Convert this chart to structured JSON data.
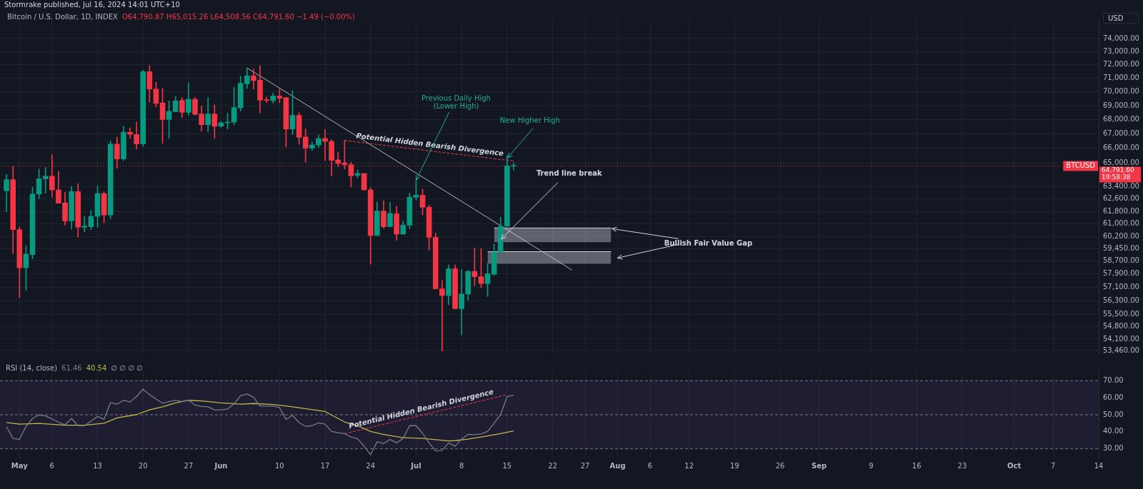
{
  "chart_data": [
    {
      "type": "candlestick",
      "title": "Bitcoin / U.S. Dollar, 1D, INDEX",
      "subtitle": "O64,790.87 H65,015.26 L64,508.56 C64,791.60 −1.49 (−0.00%)",
      "ylabel": "USD",
      "x": [
        "2024-04-29",
        "2024-04-30",
        "2024-05-01",
        "2024-05-02",
        "2024-05-03",
        "2024-05-04",
        "2024-05-05",
        "2024-05-06",
        "2024-05-07",
        "2024-05-08",
        "2024-05-09",
        "2024-05-10",
        "2024-05-11",
        "2024-05-12",
        "2024-05-13",
        "2024-05-14",
        "2024-05-15",
        "2024-05-16",
        "2024-05-17",
        "2024-05-18",
        "2024-05-19",
        "2024-05-20",
        "2024-05-21",
        "2024-05-22",
        "2024-05-23",
        "2024-05-24",
        "2024-05-25",
        "2024-05-26",
        "2024-05-27",
        "2024-05-28",
        "2024-05-29",
        "2024-05-30",
        "2024-05-31",
        "2024-06-01",
        "2024-06-02",
        "2024-06-03",
        "2024-06-04",
        "2024-06-05",
        "2024-06-06",
        "2024-06-07",
        "2024-06-08",
        "2024-06-09",
        "2024-06-10",
        "2024-06-11",
        "2024-06-12",
        "2024-06-13",
        "2024-06-14",
        "2024-06-15",
        "2024-06-16",
        "2024-06-17",
        "2024-06-18",
        "2024-06-19",
        "2024-06-20",
        "2024-06-21",
        "2024-06-22",
        "2024-06-23",
        "2024-06-24",
        "2024-06-25",
        "2024-06-26",
        "2024-06-27",
        "2024-06-28",
        "2024-06-29",
        "2024-06-30",
        "2024-07-01",
        "2024-07-02",
        "2024-07-03",
        "2024-07-04",
        "2024-07-05",
        "2024-07-06",
        "2024-07-07",
        "2024-07-08",
        "2024-07-09",
        "2024-07-10",
        "2024-07-11",
        "2024-07-12",
        "2024-07-13",
        "2024-07-14",
        "2024-07-15",
        "2024-07-16"
      ],
      "ohlc": [
        [
          63140,
          64230,
          61790,
          63880
        ],
        [
          63880,
          64760,
          59130,
          60640
        ],
        [
          60640,
          60820,
          56500,
          58270
        ],
        [
          58270,
          59640,
          56930,
          59110
        ],
        [
          59080,
          63390,
          58830,
          62930
        ],
        [
          62930,
          64580,
          62620,
          63940
        ],
        [
          63930,
          64700,
          62980,
          64110
        ],
        [
          64110,
          65570,
          62720,
          63200
        ],
        [
          63200,
          64430,
          62330,
          62330
        ],
        [
          62350,
          63050,
          60920,
          61190
        ],
        [
          61190,
          63440,
          60670,
          63090
        ],
        [
          63090,
          63610,
          60170,
          60790
        ],
        [
          60790,
          61480,
          60500,
          60860
        ],
        [
          60820,
          61860,
          60640,
          61480
        ],
        [
          61480,
          63470,
          60790,
          62960
        ],
        [
          62960,
          63080,
          61080,
          61570
        ],
        [
          61570,
          66510,
          61340,
          66290
        ],
        [
          66290,
          66780,
          64640,
          65270
        ],
        [
          65270,
          67540,
          65180,
          67110
        ],
        [
          67110,
          67430,
          66680,
          66970
        ],
        [
          66950,
          67820,
          65940,
          66300
        ],
        [
          66300,
          71600,
          66150,
          71490
        ],
        [
          71490,
          71960,
          69250,
          70200
        ],
        [
          70200,
          70710,
          68920,
          69160
        ],
        [
          69200,
          70240,
          66350,
          68010
        ],
        [
          68010,
          69340,
          66690,
          68590
        ],
        [
          68570,
          69650,
          68570,
          69340
        ],
        [
          69380,
          69580,
          68150,
          68520
        ],
        [
          68520,
          70690,
          68320,
          69460
        ],
        [
          69460,
          69590,
          68320,
          68380
        ],
        [
          68400,
          68970,
          67190,
          67640
        ],
        [
          67640,
          69590,
          67160,
          68400
        ],
        [
          68400,
          69060,
          66690,
          67530
        ],
        [
          67540,
          67890,
          67460,
          67780
        ],
        [
          67780,
          68450,
          67340,
          67830
        ],
        [
          67830,
          70340,
          67650,
          68870
        ],
        [
          68840,
          71150,
          68620,
          70630
        ],
        [
          70590,
          71770,
          70250,
          71180
        ],
        [
          71180,
          71680,
          70200,
          70830
        ],
        [
          70860,
          71950,
          68480,
          69390
        ],
        [
          69410,
          69630,
          69220,
          69380
        ],
        [
          69360,
          69910,
          69190,
          69690
        ],
        [
          69690,
          70200,
          69220,
          69540
        ],
        [
          69580,
          69580,
          66110,
          67340
        ],
        [
          67340,
          70080,
          66950,
          68310
        ],
        [
          68310,
          68500,
          66290,
          66760
        ],
        [
          66780,
          67340,
          65050,
          66010
        ],
        [
          66010,
          66430,
          65850,
          66230
        ],
        [
          66230,
          66920,
          66070,
          66680
        ],
        [
          66680,
          67300,
          65160,
          66480
        ],
        [
          66480,
          66600,
          64120,
          65180
        ],
        [
          65210,
          65740,
          64760,
          64960
        ],
        [
          65010,
          66540,
          64590,
          64890
        ],
        [
          64890,
          65050,
          63390,
          64130
        ],
        [
          64170,
          64530,
          64000,
          64290
        ],
        [
          64290,
          64290,
          63200,
          63200
        ],
        [
          63200,
          63350,
          58480,
          60270
        ],
        [
          60270,
          62410,
          60270,
          61820
        ],
        [
          61820,
          62500,
          60730,
          60820
        ],
        [
          60820,
          62380,
          60820,
          61670
        ],
        [
          61640,
          62140,
          59960,
          60350
        ],
        [
          60350,
          61180,
          60350,
          60920
        ],
        [
          60920,
          62980,
          60700,
          62720
        ],
        [
          62720,
          63790,
          62540,
          62860
        ],
        [
          62850,
          63240,
          61580,
          62070
        ],
        [
          62070,
          62200,
          59360,
          60150
        ],
        [
          60150,
          60410,
          57010,
          57010
        ],
        [
          57010,
          57510,
          53430,
          56610
        ],
        [
          56610,
          58450,
          56070,
          58210
        ],
        [
          58210,
          58450,
          55840,
          55840
        ],
        [
          55840,
          58170,
          54330,
          56700
        ],
        [
          56700,
          58120,
          56340,
          58050
        ],
        [
          58050,
          59500,
          57200,
          57740
        ],
        [
          57740,
          59450,
          57080,
          57320
        ],
        [
          57320,
          58550,
          56560,
          57910
        ],
        [
          57880,
          59730,
          57820,
          59230
        ],
        [
          59230,
          61420,
          59230,
          60850
        ],
        [
          60850,
          65500,
          60850,
          64810
        ],
        [
          64790.87,
          65015.26,
          64508.56,
          64791.6
        ]
      ],
      "colors": [
        "#089981",
        "#f23645",
        "#f23645",
        "#089981",
        "#089981",
        "#089981",
        "#089981",
        "#f23645",
        "#f23645",
        "#f23645",
        "#089981",
        "#f23645",
        "#089981",
        "#089981",
        "#089981",
        "#f23645",
        "#089981",
        "#f23645",
        "#089981",
        "#f23645",
        "#f23645",
        "#089981",
        "#f23645",
        "#f23645",
        "#f23645",
        "#089981",
        "#089981",
        "#f23645",
        "#089981",
        "#f23645",
        "#f23645",
        "#089981",
        "#f23645",
        "#089981",
        "#089981",
        "#089981",
        "#089981",
        "#089981",
        "#f23645",
        "#f23645",
        "#f23645",
        "#089981",
        "#f23645",
        "#f23645",
        "#089981",
        "#f23645",
        "#f23645",
        "#089981",
        "#089981",
        "#f23645",
        "#f23645",
        "#f23645",
        "#f23645",
        "#f23645",
        "#089981",
        "#f23645",
        "#f23645",
        "#089981",
        "#f23645",
        "#089981",
        "#f23645",
        "#089981",
        "#089981",
        "#089981",
        "#f23645",
        "#f23645",
        "#f23645",
        "#f23645",
        "#089981",
        "#f23645",
        "#089981",
        "#089981",
        "#f23645",
        "#f23645",
        "#089981",
        "#089981",
        "#089981",
        "#089981",
        "#089981"
      ],
      "series": [
        {
          "type": "line",
          "color": "#b2b5be",
          "x": [
            "2024-06-05",
            "2024-07-25"
          ],
          "values": [
            71770,
            58130
          ]
        },
        {
          "type": "line",
          "line_style": "dashed",
          "color": "#f23645",
          "x": [
            "2024-06-20",
            "2024-07-16"
          ],
          "values": [
            66540,
            65130
          ]
        },
        {
          "type": "line",
          "color": "#d1d4dc",
          "x": [
            "2024-07-13",
            "2024-07-31"
          ],
          "values": [
            60740,
            60740
          ],
          "lower": [
            59850,
            59850
          ],
          "upper": [
            60740,
            60740
          ]
        },
        {
          "type": "line",
          "color": "#d1d4dc",
          "x": [
            "2024-07-12",
            "2024-07-31"
          ],
          "values": [
            59260,
            59260
          ],
          "lower": [
            58520,
            58520
          ],
          "upper": [
            59260,
            59260
          ]
        }
      ],
      "ref_lines": [
        {
          "axis": "y",
          "value": 64791.6,
          "label": "64,791.60\n19:58:38",
          "color": "#f23645",
          "line_style": "dotted"
        }
      ],
      "annotations": [
        "Stormrake published, Jul 16, 2024 14:01 UTC+10",
        {
          "text": "Potential Hidden Bearish Divergence",
          "x": "2024-07-03",
          "y": 65830
        },
        {
          "text": "Previous Daily High\n(Lower High)",
          "x": "2024-07-01",
          "y": 63790
        },
        {
          "text": "New Higher High",
          "x": "2024-07-15",
          "y": 65500
        },
        {
          "text": "Trend line break",
          "x": "2024-07-14",
          "y": 60000
        },
        {
          "text": "Bullish Fair Value Gap",
          "x": "2024-07-31",
          "y": 60740
        },
        {
          "text": "BTCUSD",
          "y": 64791.6
        }
      ],
      "log": true,
      "ylim": [
        53300,
        75500
      ],
      "yticks": [
        {
          "value": 74000,
          "label": "74,000.00"
        },
        {
          "value": 73000,
          "label": "73,000.00"
        },
        {
          "value": 72000,
          "label": "72,000.00"
        },
        {
          "value": 71000,
          "label": "71,000.00"
        },
        {
          "value": 70000,
          "label": "70,000.00"
        },
        {
          "value": 69000,
          "label": "69,000.00"
        },
        {
          "value": 68000,
          "label": "68,000.00"
        },
        {
          "value": 67000,
          "label": "67,000.00"
        },
        {
          "value": 66000,
          "label": "66,000.00"
        },
        {
          "value": 65000,
          "label": "65,000.00"
        },
        {
          "value": 63400,
          "label": "63,400.00"
        },
        {
          "value": 62600,
          "label": "62,600.00"
        },
        {
          "value": 61800,
          "label": "61,800.00"
        },
        {
          "value": 61000,
          "label": "61,000.00"
        },
        {
          "value": 60200,
          "label": "60,200.00"
        },
        {
          "value": 59450,
          "label": "59,450.00"
        },
        {
          "value": 58700,
          "label": "58,700.00"
        },
        {
          "value": 57900,
          "label": "57,900.00"
        },
        {
          "value": 57100,
          "label": "57,100.00"
        },
        {
          "value": 56300,
          "label": "56,300.00"
        },
        {
          "value": 55500,
          "label": "55,500.00"
        },
        {
          "value": 54800,
          "label": "54,800.00"
        },
        {
          "value": 54100,
          "label": "54,100.00"
        },
        {
          "value": 53460,
          "label": "53,460.00"
        }
      ],
      "xlim": [
        "2024-04-28",
        "2024-10-14"
      ],
      "xticks": [
        {
          "value": "2024-05-01",
          "label": null
        },
        {
          "value": "2024-05-06",
          "label": null
        },
        {
          "value": "2024-05-13",
          "label": null
        },
        {
          "value": "2024-05-20",
          "label": null
        },
        {
          "value": "2024-05-27",
          "label": null
        },
        {
          "value": "2024-06-01",
          "label": null
        },
        {
          "value": "2024-06-10",
          "label": null
        },
        {
          "value": "2024-06-17",
          "label": null
        },
        {
          "value": "2024-06-24",
          "label": null
        },
        {
          "value": "2024-07-01",
          "label": null
        },
        {
          "value": "2024-07-08",
          "label": null
        },
        {
          "value": "2024-07-15",
          "label": null
        },
        {
          "value": "2024-07-22",
          "label": null
        },
        {
          "value": "2024-07-27",
          "label": null
        },
        {
          "value": "2024-08-01",
          "label": null
        },
        {
          "value": "2024-08-06",
          "label": null
        },
        {
          "value": "2024-08-12",
          "label": null
        },
        {
          "value": "2024-08-19",
          "label": null
        },
        {
          "value": "2024-08-26",
          "label": null
        },
        {
          "value": "2024-09-01",
          "label": null
        },
        {
          "value": "2024-09-09",
          "label": null
        },
        {
          "value": "2024-09-16",
          "label": null
        },
        {
          "value": "2024-09-23",
          "label": null
        },
        {
          "value": "2024-10-01",
          "label": null
        },
        {
          "value": "2024-10-07",
          "label": null
        },
        {
          "value": "2024-10-14",
          "label": null
        }
      ],
      "tick_labels": "y",
      "grid": true
    },
    {
      "type": "line",
      "legend_title": "RSI (14, close)",
      "legend": "top left",
      "x": [
        "2024-04-29",
        "2024-04-30",
        "2024-05-01",
        "2024-05-02",
        "2024-05-03",
        "2024-05-04",
        "2024-05-05",
        "2024-05-06",
        "2024-05-07",
        "2024-05-08",
        "2024-05-09",
        "2024-05-10",
        "2024-05-11",
        "2024-05-12",
        "2024-05-13",
        "2024-05-14",
        "2024-05-15",
        "2024-05-16",
        "2024-05-17",
        "2024-05-18",
        "2024-05-19",
        "2024-05-20",
        "2024-05-21",
        "2024-05-22",
        "2024-05-23",
        "2024-05-24",
        "2024-05-25",
        "2024-05-26",
        "2024-05-27",
        "2024-05-28",
        "2024-05-29",
        "2024-05-30",
        "2024-05-31",
        "2024-06-01",
        "2024-06-02",
        "2024-06-03",
        "2024-06-04",
        "2024-06-05",
        "2024-06-06",
        "2024-06-07",
        "2024-06-08",
        "2024-06-09",
        "2024-06-10",
        "2024-06-11",
        "2024-06-12",
        "2024-06-13",
        "2024-06-14",
        "2024-06-15",
        "2024-06-16",
        "2024-06-17",
        "2024-06-18",
        "2024-06-19",
        "2024-06-20",
        "2024-06-21",
        "2024-06-22",
        "2024-06-23",
        "2024-06-24",
        "2024-06-25",
        "2024-06-26",
        "2024-06-27",
        "2024-06-28",
        "2024-06-29",
        "2024-06-30",
        "2024-07-01",
        "2024-07-02",
        "2024-07-03",
        "2024-07-04",
        "2024-07-05",
        "2024-07-06",
        "2024-07-07",
        "2024-07-08",
        "2024-07-09",
        "2024-07-10",
        "2024-07-11",
        "2024-07-12",
        "2024-07-13",
        "2024-07-14",
        "2024-07-15",
        "2024-07-16"
      ],
      "series": [
        {
          "name": "61.46",
          "color": "#787b86",
          "values": [
            43.0,
            36.1,
            35.5,
            43.2,
            47.8,
            49.9,
            49.3,
            47.5,
            45.6,
            44.1,
            47.8,
            43.6,
            43.6,
            46.2,
            49.0,
            47.3,
            57.2,
            56.2,
            58.5,
            57.5,
            60.7,
            65.0,
            61.8,
            59.2,
            56.8,
            57.7,
            58.5,
            57.7,
            58.6,
            55.7,
            54.9,
            54.7,
            52.9,
            52.9,
            53.4,
            56.4,
            61.2,
            62.2,
            60.3,
            55.1,
            55.1,
            55.1,
            54.2,
            47.3,
            49.7,
            45.4,
            43.2,
            43.6,
            45.2,
            44.5,
            40.2,
            39.5,
            38.9,
            36.9,
            35.9,
            31.6,
            26.5,
            34.1,
            33.1,
            35.5,
            33.5,
            36.1,
            43.6,
            43.6,
            39.1,
            33.5,
            28.8,
            29.0,
            33.5,
            31.5,
            35.7,
            38.5,
            38.3,
            38.7,
            40.2,
            45.0,
            50.1,
            60.7,
            61.5
          ]
        },
        {
          "name": "40.54",
          "color": "#c2b54a",
          "x": [
            "2024-04-29",
            "2024-05-01",
            "2024-05-04",
            "2024-05-08",
            "2024-05-11",
            "2024-05-14",
            "2024-05-16",
            "2024-05-19",
            "2024-05-21",
            "2024-05-23",
            "2024-05-25",
            "2024-05-27",
            "2024-05-29",
            "2024-06-01",
            "2024-06-04",
            "2024-06-06",
            "2024-06-09",
            "2024-06-12",
            "2024-06-17",
            "2024-06-20",
            "2024-06-22",
            "2024-06-24",
            "2024-06-26",
            "2024-06-29",
            "2024-07-02",
            "2024-07-06",
            "2024-07-07",
            "2024-07-09",
            "2024-07-12",
            "2024-07-14",
            "2024-07-16"
          ],
          "values": [
            45.4,
            44.5,
            44.9,
            43.9,
            43.9,
            45.0,
            48.2,
            50.1,
            52.9,
            54.7,
            57.0,
            58.5,
            58.1,
            57.0,
            56.2,
            56.6,
            56.0,
            54.7,
            51.9,
            45.8,
            43.6,
            40.2,
            38.4,
            36.5,
            36.1,
            34.6,
            34.8,
            35.7,
            37.6,
            38.9,
            40.5
          ]
        },
        {
          "line_style": "dashed",
          "color": "#f23645",
          "x": [
            "2024-06-20",
            "2024-07-15"
          ],
          "values": [
            38.9,
            61.8
          ]
        }
      ],
      "ref_lines": [
        {
          "axis": "y",
          "value": 70,
          "color": "#787b86",
          "line_style": "dashed"
        },
        {
          "axis": "y",
          "value": 50,
          "color": "#787b86",
          "line_style": "dashed"
        },
        {
          "axis": "y",
          "value": 30,
          "color": "#787b86",
          "line_style": "dashed"
        }
      ],
      "bands": [
        {
          "axis": "y",
          "from": 30,
          "to": 70,
          "color": "#7e57c2"
        }
      ],
      "annotations": [
        "∅ ∅ ∅ ∅",
        {
          "text": "Potential Hidden Bearish Divergence",
          "x": "2024-07-02",
          "y": 49.9
        }
      ],
      "ylim": [
        24,
        76
      ],
      "yticks": [
        {
          "value": 70,
          "label": "70.00"
        },
        {
          "value": 60,
          "label": "60.00"
        },
        {
          "value": 50,
          "label": "50.00"
        },
        {
          "value": 40,
          "label": "40.00"
        },
        {
          "value": 30,
          "label": "30.00"
        }
      ],
      "xlim": [
        "2024-04-28",
        "2024-10-14"
      ],
      "xticks": [
        {
          "value": "2024-05-01",
          "label": "May"
        },
        {
          "value": "2024-05-06",
          "label": "6"
        },
        {
          "value": "2024-05-13",
          "label": "13"
        },
        {
          "value": "2024-05-20",
          "label": "20"
        },
        {
          "value": "2024-05-27",
          "label": "27"
        },
        {
          "value": "2024-06-01",
          "label": "Jun"
        },
        {
          "value": "2024-06-10",
          "label": "10"
        },
        {
          "value": "2024-06-17",
          "label": "17"
        },
        {
          "value": "2024-06-24",
          "label": "24"
        },
        {
          "value": "2024-07-01",
          "label": "Jul"
        },
        {
          "value": "2024-07-08",
          "label": "8"
        },
        {
          "value": "2024-07-15",
          "label": "15"
        },
        {
          "value": "2024-07-22",
          "label": "22"
        },
        {
          "value": "2024-07-27",
          "label": "27"
        },
        {
          "value": "2024-08-01",
          "label": "Aug"
        },
        {
          "value": "2024-08-06",
          "label": "6"
        },
        {
          "value": "2024-08-12",
          "label": "12"
        },
        {
          "value": "2024-08-19",
          "label": "19"
        },
        {
          "value": "2024-08-26",
          "label": "26"
        },
        {
          "value": "2024-09-01",
          "label": "Sep"
        },
        {
          "value": "2024-09-09",
          "label": "9"
        },
        {
          "value": "2024-09-16",
          "label": "16"
        },
        {
          "value": "2024-09-23",
          "label": "23"
        },
        {
          "value": "2024-10-01",
          "label": "Oct"
        },
        {
          "value": "2024-10-07",
          "label": "7"
        },
        {
          "value": "2024-10-14",
          "label": "14"
        }
      ],
      "grid": "x"
    }
  ]
}
